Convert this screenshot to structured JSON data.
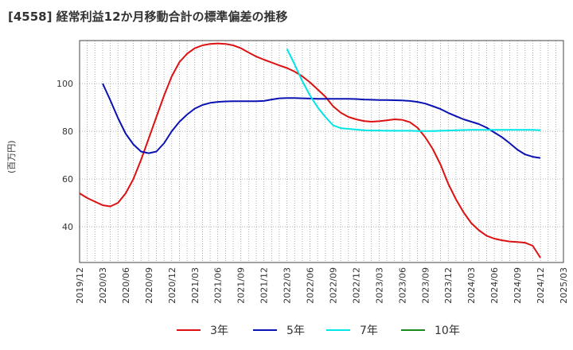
{
  "chart_data": {
    "type": "line",
    "title": "[4558]  経常利益12か月移動合計の標準偏差の推移",
    "ylabel": "(百万円)",
    "xlabel": "",
    "ylim": [
      25,
      118
    ],
    "yticks": [
      40,
      60,
      80,
      100
    ],
    "x_ticks": [
      "2019/12",
      "2020/03",
      "2020/06",
      "2020/09",
      "2020/12",
      "2021/03",
      "2021/06",
      "2021/09",
      "2021/12",
      "2022/03",
      "2022/06",
      "2022/09",
      "2022/12",
      "2023/03",
      "2023/06",
      "2023/09",
      "2023/12",
      "2024/03",
      "2024/06",
      "2024/09",
      "2024/12",
      "2025/03"
    ],
    "grid": true,
    "legend_position": "bottom",
    "series": [
      {
        "name": "3年",
        "color": "#dd1111",
        "points": [
          [
            "2019/12",
            54
          ],
          [
            "2020/01",
            52
          ],
          [
            "2020/02",
            50.5
          ],
          [
            "2020/03",
            49
          ],
          [
            "2020/04",
            48.5
          ],
          [
            "2020/05",
            50
          ],
          [
            "2020/06",
            54
          ],
          [
            "2020/07",
            60
          ],
          [
            "2020/08",
            68
          ],
          [
            "2020/09",
            77
          ],
          [
            "2020/10",
            86
          ],
          [
            "2020/11",
            95
          ],
          [
            "2020/12",
            103
          ],
          [
            "2021/01",
            109
          ],
          [
            "2021/02",
            112.5
          ],
          [
            "2021/03",
            114.8
          ],
          [
            "2021/04",
            116
          ],
          [
            "2021/05",
            116.6
          ],
          [
            "2021/06",
            116.8
          ],
          [
            "2021/07",
            116.6
          ],
          [
            "2021/08",
            116
          ],
          [
            "2021/09",
            114.8
          ],
          [
            "2021/10",
            113
          ],
          [
            "2021/11",
            111.3
          ],
          [
            "2021/12",
            110
          ],
          [
            "2022/01",
            108.8
          ],
          [
            "2022/02",
            107.6
          ],
          [
            "2022/03",
            106.5
          ],
          [
            "2022/04",
            105
          ],
          [
            "2022/05",
            103
          ],
          [
            "2022/06",
            100.5
          ],
          [
            "2022/07",
            97.5
          ],
          [
            "2022/08",
            94.5
          ],
          [
            "2022/09",
            90.5
          ],
          [
            "2022/10",
            87.8
          ],
          [
            "2022/11",
            86
          ],
          [
            "2022/12",
            85
          ],
          [
            "2023/01",
            84.3
          ],
          [
            "2023/02",
            84
          ],
          [
            "2023/03",
            84.2
          ],
          [
            "2023/04",
            84.6
          ],
          [
            "2023/05",
            85
          ],
          [
            "2023/06",
            84.8
          ],
          [
            "2023/07",
            83.8
          ],
          [
            "2023/08",
            81.5
          ],
          [
            "2023/09",
            77.5
          ],
          [
            "2023/10",
            72.5
          ],
          [
            "2023/11",
            66
          ],
          [
            "2023/12",
            58
          ],
          [
            "2024/01",
            51.5
          ],
          [
            "2024/02",
            46
          ],
          [
            "2024/03",
            41.5
          ],
          [
            "2024/04",
            38.5
          ],
          [
            "2024/05",
            36.2
          ],
          [
            "2024/06",
            35
          ],
          [
            "2024/07",
            34.3
          ],
          [
            "2024/08",
            33.8
          ],
          [
            "2024/09",
            33.6
          ],
          [
            "2024/10",
            33.3
          ],
          [
            "2024/11",
            32
          ],
          [
            "2024/12",
            27
          ]
        ]
      },
      {
        "name": "5年",
        "color": "#0a12b4",
        "points": [
          [
            "2020/03",
            100
          ],
          [
            "2020/04",
            93
          ],
          [
            "2020/05",
            85.5
          ],
          [
            "2020/06",
            79
          ],
          [
            "2020/07",
            74.5
          ],
          [
            "2020/08",
            71.5
          ],
          [
            "2020/09",
            70.8
          ],
          [
            "2020/10",
            71.5
          ],
          [
            "2020/11",
            75
          ],
          [
            "2020/12",
            80
          ],
          [
            "2021/01",
            84
          ],
          [
            "2021/02",
            87
          ],
          [
            "2021/03",
            89.5
          ],
          [
            "2021/04",
            91
          ],
          [
            "2021/05",
            91.9
          ],
          [
            "2021/06",
            92.3
          ],
          [
            "2021/07",
            92.5
          ],
          [
            "2021/08",
            92.6
          ],
          [
            "2021/09",
            92.6
          ],
          [
            "2021/10",
            92.6
          ],
          [
            "2021/11",
            92.6
          ],
          [
            "2021/12",
            92.7
          ],
          [
            "2022/01",
            93.3
          ],
          [
            "2022/02",
            93.8
          ],
          [
            "2022/03",
            93.9
          ],
          [
            "2022/04",
            93.9
          ],
          [
            "2022/05",
            93.8
          ],
          [
            "2022/06",
            93.7
          ],
          [
            "2022/07",
            93.6
          ],
          [
            "2022/08",
            93.6
          ],
          [
            "2022/09",
            93.6
          ],
          [
            "2022/10",
            93.6
          ],
          [
            "2022/11",
            93.6
          ],
          [
            "2022/12",
            93.5
          ],
          [
            "2023/01",
            93.3
          ],
          [
            "2023/02",
            93.2
          ],
          [
            "2023/03",
            93.1
          ],
          [
            "2023/04",
            93.1
          ],
          [
            "2023/05",
            93
          ],
          [
            "2023/06",
            92.9
          ],
          [
            "2023/07",
            92.7
          ],
          [
            "2023/08",
            92.3
          ],
          [
            "2023/09",
            91.6
          ],
          [
            "2023/10",
            90.5
          ],
          [
            "2023/11",
            89.3
          ],
          [
            "2023/12",
            87.7
          ],
          [
            "2024/01",
            86.3
          ],
          [
            "2024/02",
            85
          ],
          [
            "2024/03",
            84
          ],
          [
            "2024/04",
            83
          ],
          [
            "2024/05",
            81.5
          ],
          [
            "2024/06",
            79.5
          ],
          [
            "2024/07",
            77.5
          ],
          [
            "2024/08",
            75
          ],
          [
            "2024/09",
            72.3
          ],
          [
            "2024/10",
            70.3
          ],
          [
            "2024/11",
            69.3
          ],
          [
            "2024/12",
            68.8
          ]
        ]
      },
      {
        "name": "7年",
        "color": "#00e5e5",
        "points": [
          [
            "2022/03",
            114.5
          ],
          [
            "2022/04",
            108
          ],
          [
            "2022/05",
            101
          ],
          [
            "2022/06",
            95
          ],
          [
            "2022/07",
            90
          ],
          [
            "2022/08",
            86
          ],
          [
            "2022/09",
            82.5
          ],
          [
            "2022/10",
            81.3
          ],
          [
            "2022/11",
            81
          ],
          [
            "2022/12",
            80.7
          ],
          [
            "2023/01",
            80.4
          ],
          [
            "2023/02",
            80.3
          ],
          [
            "2023/03",
            80.3
          ],
          [
            "2023/04",
            80.2
          ],
          [
            "2023/05",
            80.2
          ],
          [
            "2023/06",
            80.2
          ],
          [
            "2023/07",
            80.2
          ],
          [
            "2023/08",
            80.1
          ],
          [
            "2023/09",
            80.1
          ],
          [
            "2023/10",
            80.1
          ],
          [
            "2023/11",
            80.2
          ],
          [
            "2023/12",
            80.3
          ],
          [
            "2024/01",
            80.4
          ],
          [
            "2024/02",
            80.5
          ],
          [
            "2024/03",
            80.6
          ],
          [
            "2024/04",
            80.6
          ],
          [
            "2024/05",
            80.6
          ],
          [
            "2024/06",
            80.6
          ],
          [
            "2024/07",
            80.6
          ],
          [
            "2024/08",
            80.6
          ],
          [
            "2024/09",
            80.6
          ],
          [
            "2024/10",
            80.6
          ],
          [
            "2024/11",
            80.6
          ],
          [
            "2024/12",
            80.4
          ]
        ]
      },
      {
        "name": "10年",
        "color": "#1a8a1a",
        "points": []
      }
    ]
  }
}
